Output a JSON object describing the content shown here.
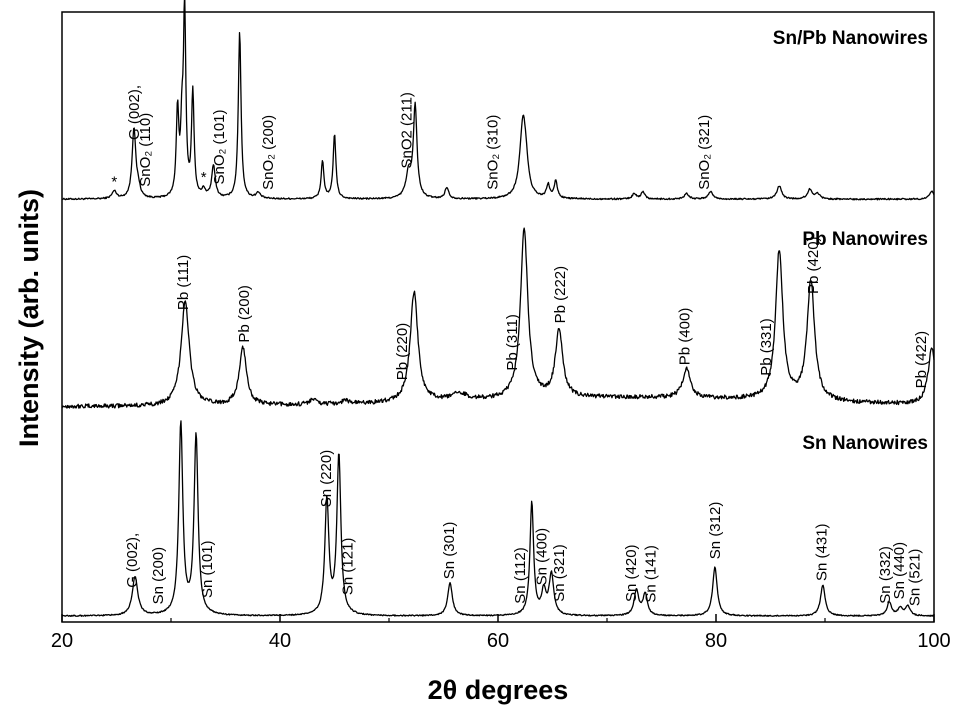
{
  "chart_data": {
    "type": "line",
    "xlabel": "2θ degrees",
    "ylabel": "Intensity (arb. units)",
    "xlim": [
      20,
      100
    ],
    "x_ticks": [
      20,
      40,
      60,
      80,
      100
    ],
    "y_ticks": false,
    "grid": false,
    "series": [
      {
        "name": "Sn/Pb Nanowires",
        "baseline": 0.02,
        "noise": 0.004,
        "peaks": [
          {
            "x": 24.8,
            "height": 0.04,
            "width": 0.25
          },
          {
            "x": 26.6,
            "height": 0.37,
            "width": 0.2
          },
          {
            "x": 27.0,
            "height": 0.05,
            "width": 0.2
          },
          {
            "x": 30.6,
            "height": 0.45,
            "width": 0.14
          },
          {
            "x": 31.0,
            "height": 0.32,
            "width": 0.14
          },
          {
            "x": 31.25,
            "height": 0.97,
            "width": 0.13
          },
          {
            "x": 32.0,
            "height": 0.55,
            "width": 0.14
          },
          {
            "x": 33.0,
            "height": 0.04,
            "width": 0.2
          },
          {
            "x": 33.9,
            "height": 0.17,
            "width": 0.2
          },
          {
            "x": 36.3,
            "height": 0.88,
            "width": 0.15
          },
          {
            "x": 38.0,
            "height": 0.03,
            "width": 0.25
          },
          {
            "x": 43.9,
            "height": 0.2,
            "width": 0.15
          },
          {
            "x": 45.0,
            "height": 0.34,
            "width": 0.15
          },
          {
            "x": 51.8,
            "height": 0.13,
            "width": 0.3
          },
          {
            "x": 52.4,
            "height": 0.48,
            "width": 0.2
          },
          {
            "x": 55.3,
            "height": 0.06,
            "width": 0.2
          },
          {
            "x": 62.3,
            "height": 0.42,
            "width": 0.35
          },
          {
            "x": 62.6,
            "height": 0.07,
            "width": 0.2
          },
          {
            "x": 64.6,
            "height": 0.07,
            "width": 0.18
          },
          {
            "x": 65.3,
            "height": 0.09,
            "width": 0.18
          },
          {
            "x": 72.5,
            "height": 0.03,
            "width": 0.2
          },
          {
            "x": 73.3,
            "height": 0.04,
            "width": 0.2
          },
          {
            "x": 77.3,
            "height": 0.03,
            "width": 0.25
          },
          {
            "x": 79.5,
            "height": 0.04,
            "width": 0.25
          },
          {
            "x": 85.8,
            "height": 0.07,
            "width": 0.25
          },
          {
            "x": 88.6,
            "height": 0.05,
            "width": 0.25
          },
          {
            "x": 89.3,
            "height": 0.03,
            "width": 0.25
          },
          {
            "x": 99.8,
            "height": 0.04,
            "width": 0.25
          }
        ]
      },
      {
        "name": "Pb Nanowires",
        "baseline": 0.02,
        "noise": 0.012,
        "peaks": [
          {
            "x": 31.3,
            "height": 0.6,
            "width": 0.45
          },
          {
            "x": 36.6,
            "height": 0.33,
            "width": 0.4
          },
          {
            "x": 43.0,
            "height": 0.03,
            "width": 0.4
          },
          {
            "x": 46.0,
            "height": 0.02,
            "width": 0.4
          },
          {
            "x": 52.3,
            "height": 0.63,
            "width": 0.42
          },
          {
            "x": 56.5,
            "height": 0.04,
            "width": 0.8
          },
          {
            "x": 62.4,
            "height": 0.97,
            "width": 0.4
          },
          {
            "x": 65.6,
            "height": 0.39,
            "width": 0.4
          },
          {
            "x": 77.3,
            "height": 0.17,
            "width": 0.42
          },
          {
            "x": 85.8,
            "height": 0.85,
            "width": 0.4
          },
          {
            "x": 88.7,
            "height": 0.68,
            "width": 0.42
          },
          {
            "x": 99.8,
            "height": 0.32,
            "width": 0.4
          }
        ]
      },
      {
        "name": "Sn Nanowires",
        "baseline": 0.01,
        "noise": 0.003,
        "peaks": [
          {
            "x": 26.7,
            "height": 0.2,
            "width": 0.3
          },
          {
            "x": 30.9,
            "height": 0.98,
            "width": 0.22
          },
          {
            "x": 32.3,
            "height": 0.92,
            "width": 0.22
          },
          {
            "x": 44.3,
            "height": 0.59,
            "width": 0.22
          },
          {
            "x": 45.4,
            "height": 0.82,
            "width": 0.22
          },
          {
            "x": 55.6,
            "height": 0.17,
            "width": 0.25
          },
          {
            "x": 63.1,
            "height": 0.58,
            "width": 0.2
          },
          {
            "x": 64.2,
            "height": 0.12,
            "width": 0.25
          },
          {
            "x": 64.9,
            "height": 0.21,
            "width": 0.25
          },
          {
            "x": 72.7,
            "height": 0.13,
            "width": 0.25
          },
          {
            "x": 73.5,
            "height": 0.11,
            "width": 0.25
          },
          {
            "x": 79.9,
            "height": 0.25,
            "width": 0.25
          },
          {
            "x": 89.8,
            "height": 0.16,
            "width": 0.25
          },
          {
            "x": 95.9,
            "height": 0.07,
            "width": 0.25
          },
          {
            "x": 96.9,
            "height": 0.04,
            "width": 0.25
          },
          {
            "x": 97.6,
            "height": 0.05,
            "width": 0.25
          }
        ]
      }
    ],
    "annotations": {
      "top": [
        {
          "x": 26.6,
          "text": "G (002),"
        },
        {
          "x": 27.6,
          "text": "SnO₂ (110)"
        },
        {
          "x": 34.4,
          "text": "SnO₂ (101)"
        },
        {
          "x": 38.9,
          "text": "SnO₂ (200)"
        },
        {
          "x": 51.6,
          "text": "SnO2 (211)"
        },
        {
          "x": 59.5,
          "text": "SnO₂ (310)"
        },
        {
          "x": 78.9,
          "text": "SnO₂ (321)"
        }
      ],
      "top_markers": [
        {
          "x": 24.8,
          "text": "*"
        },
        {
          "x": 33.0,
          "text": "*"
        }
      ],
      "middle": [
        {
          "x": 31.1,
          "text": "Pb (111)"
        },
        {
          "x": 36.7,
          "text": "Pb (200)"
        },
        {
          "x": 51.2,
          "text": "Pb (220)"
        },
        {
          "x": 61.3,
          "text": "Pb (311)"
        },
        {
          "x": 65.7,
          "text": "Pb (222)"
        },
        {
          "x": 77.1,
          "text": "Pb (400)"
        },
        {
          "x": 84.6,
          "text": "Pb (331)"
        },
        {
          "x": 88.9,
          "text": "Pb (420)"
        },
        {
          "x": 98.8,
          "text": "Pb (422)"
        }
      ],
      "bottom": [
        {
          "x": 26.4,
          "text": "G (002),"
        },
        {
          "x": 28.8,
          "text": "Sn (200)"
        },
        {
          "x": 33.3,
          "text": "Sn (101)"
        },
        {
          "x": 44.2,
          "text": "Sn (220)"
        },
        {
          "x": 46.2,
          "text": "Sn (121)"
        },
        {
          "x": 55.5,
          "text": "Sn (301)"
        },
        {
          "x": 62.0,
          "text": "Sn (112)"
        },
        {
          "x": 64.0,
          "text": "Sn (400)"
        },
        {
          "x": 65.6,
          "text": "Sn (321)"
        },
        {
          "x": 72.2,
          "text": "Sn (420)"
        },
        {
          "x": 74.0,
          "text": "Sn (141)"
        },
        {
          "x": 79.9,
          "text": "Sn (312)"
        },
        {
          "x": 89.7,
          "text": "Sn (431)"
        },
        {
          "x": 95.5,
          "text": "Sn (332)"
        },
        {
          "x": 96.8,
          "text": "Sn (440)"
        },
        {
          "x": 98.2,
          "text": "Sn (521)"
        }
      ]
    }
  }
}
